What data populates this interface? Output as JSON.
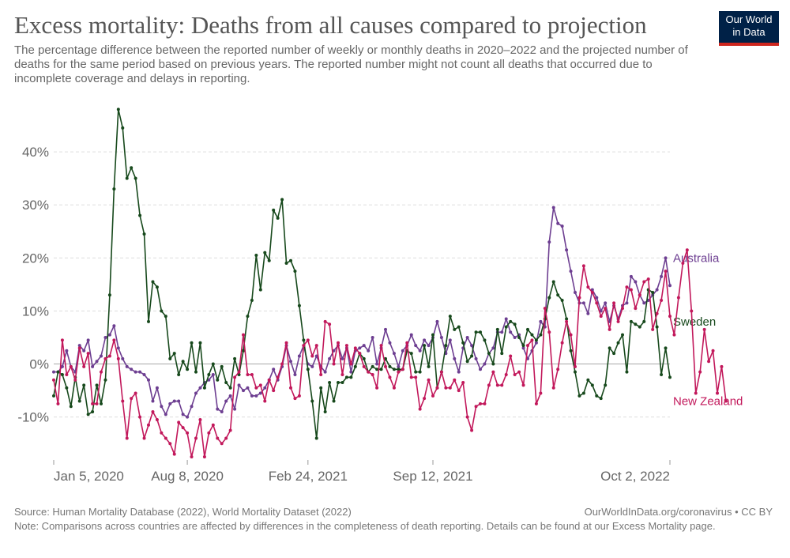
{
  "header": {
    "title": "Excess mortality: Deaths from all causes compared to projection",
    "subtitle": "The percentage difference between the reported number of weekly or monthly deaths in 2020–2022 and the projected number of deaths for the same period based on previous years. The reported number might not count all deaths that occurred due to incomplete coverage and delays in reporting.",
    "logo_line1": "Our World",
    "logo_line2": "in Data"
  },
  "footer": {
    "source": "Source: Human Mortality Database (2022), World Mortality Dataset (2022)",
    "license": "OurWorldInData.org/coronavirus • CC BY",
    "note": "Note: Comparisons across countries are affected by differences in the completeness of death reporting. Details can be found at our Excess Mortality page."
  },
  "chart_data": {
    "type": "line",
    "title": "Excess mortality: Deaths from all causes compared to projection",
    "ylabel": "",
    "ylim": [
      -17.5,
      50
    ],
    "yticks": [
      -10,
      0,
      10,
      20,
      30,
      40
    ],
    "ytick_labels": [
      "-10%",
      "0%",
      "10%",
      "20%",
      "30%",
      "40%"
    ],
    "x_range": [
      0,
      143
    ],
    "xticks": [
      0,
      31,
      59,
      88,
      143
    ],
    "xtick_labels": [
      "Jan 5, 2020",
      "Aug 8, 2020",
      "Feb 24, 2021",
      "Sep 12, 2021",
      "Oct 2, 2022"
    ],
    "grid": true,
    "series": [
      {
        "name": "Australia",
        "color": "#6d3e91",
        "values": [
          -1.5,
          -1.5,
          -0.5,
          2.5,
          -0.5,
          -1.5,
          3.5,
          2.5,
          4.5,
          -0.5,
          0.5,
          1.5,
          5.0,
          5.5,
          7.2,
          3.0,
          1.0,
          -0.5,
          -1.0,
          -1.5,
          -1.5,
          -2.0,
          -3.0,
          -7.0,
          -4.5,
          -8.0,
          -9.5,
          -7.5,
          -7.0,
          -7.0,
          -9.5,
          -10.0,
          -8.0,
          -5.5,
          -4.5,
          -3.5,
          -3.0,
          -2.0,
          -8.5,
          -9.0,
          -7.0,
          -6.0,
          -8.5,
          -4.0,
          -5.0,
          -4.5,
          -6.0,
          -6.0,
          -5.5,
          -4.5,
          -3.0,
          -1.0,
          -3.0,
          -0.5,
          3.5,
          0.5,
          -2.0,
          1.5,
          3.5,
          0.0,
          -0.5,
          1.5,
          -0.5,
          -1.5,
          1.0,
          2.5,
          3.5,
          1.0,
          3.0,
          -1.5,
          2.5,
          3.0,
          3.5,
          2.5,
          5.0,
          0.0,
          3.0,
          6.5,
          4.0,
          2.0,
          -0.5,
          2.5,
          3.5,
          5.5,
          3.5,
          2.5,
          4.5,
          3.5,
          5.0,
          8.0,
          5.0,
          2.0,
          4.5,
          1.0,
          -1.5,
          3.0,
          5.0,
          3.5,
          1.0,
          -1.0,
          0.0,
          2.0,
          3.0,
          6.0,
          6.0,
          8.5,
          6.0,
          5.0,
          5.5,
          3.0,
          1.0,
          2.5,
          4.0,
          8.0,
          7.0,
          23.0,
          29.5,
          26.5,
          26.0,
          21.5,
          17.5,
          13.5,
          11.5,
          11.5,
          9.5,
          14.0,
          12.5,
          10.0,
          11.5,
          8.0,
          11.0,
          8.5,
          11.0,
          11.5,
          16.5,
          15.5,
          13.0,
          11.5,
          12.0,
          13.0,
          14.0,
          16.5,
          20.0,
          14.8
        ]
      },
      {
        "name": "Sweden",
        "color": "#17491c",
        "values": [
          -6.0,
          -1.5,
          -2.0,
          -4.5,
          -8.0,
          -2.5,
          -7.0,
          -4.0,
          -9.5,
          -9.0,
          -4.0,
          -7.5,
          -3.0,
          13.0,
          33.0,
          48.0,
          44.5,
          35.0,
          37.0,
          35.0,
          28.0,
          24.5,
          8.0,
          15.5,
          14.5,
          10.0,
          9.0,
          1.0,
          2.0,
          -2.0,
          0.5,
          -1.0,
          4.0,
          -1.5,
          4.0,
          -4.5,
          -2.0,
          0.0,
          -3.0,
          -0.5,
          -3.5,
          -4.5,
          1.0,
          -2.0,
          2.5,
          9.0,
          12.0,
          20.5,
          14.0,
          21.0,
          19.5,
          29.0,
          27.5,
          31.0,
          19.0,
          19.5,
          17.5,
          11.0,
          4.5,
          -1.0,
          -7.0,
          -14.0,
          -4.5,
          -9.0,
          -3.5,
          -7.0,
          -3.5,
          -3.5,
          -2.5,
          -2.5,
          -0.5,
          2.0,
          1.0,
          -1.5,
          -0.5,
          -1.0,
          -1.0,
          1.0,
          -0.5,
          -1.0,
          -1.0,
          -1.0,
          2.5,
          2.0,
          -1.5,
          -1.5,
          3.5,
          -0.5,
          5.5,
          -4.5,
          -1.5,
          3.5,
          9.0,
          6.5,
          7.0,
          4.0,
          0.5,
          1.5,
          6.0,
          6.0,
          4.5,
          2.0,
          0.0,
          6.5,
          2.0,
          7.0,
          8.0,
          7.5,
          5.0,
          3.5,
          6.5,
          5.5,
          4.5,
          5.5,
          8.5,
          12.5,
          15.5,
          13.0,
          12.0,
          8.5,
          2.5,
          -1.5,
          -6.0,
          -5.5,
          -3.0,
          -4.0,
          -6.0,
          -6.5,
          -4.0,
          3.0,
          2.0,
          4.0,
          5.5,
          -1.5,
          8.0,
          7.5,
          7.0,
          8.0,
          14.0,
          13.5,
          7.0,
          -2.0,
          3.0
        ]
      },
      {
        "name": "New Zealand",
        "color": "#c2185b",
        "values": [
          -3.0,
          -7.5,
          4.5,
          -2.0,
          -0.5,
          -3.0,
          3.0,
          -0.5,
          2.0,
          -7.5,
          -7.5,
          -1.5,
          1.0,
          1.5,
          4.5,
          1.0,
          -7.0,
          -14.0,
          -6.5,
          -5.5,
          -10.0,
          -14.0,
          -11.5,
          -9.0,
          -10.5,
          -13.0,
          -14.0,
          -15.0,
          -17.0,
          -11.0,
          -12.0,
          -13.0,
          -17.5,
          -14.0,
          -10.5,
          -17.5,
          -13.0,
          -11.5,
          -14.0,
          -15.0,
          -14.0,
          -12.5,
          -2.5,
          -1.5,
          5.5,
          -2.0,
          -2.0,
          -4.5,
          -4.0,
          -7.0,
          -3.0,
          -5.0,
          -2.5,
          0.0,
          4.0,
          -4.5,
          -6.5,
          -6.0,
          3.5,
          4.5,
          1.5,
          3.5,
          -2.0,
          8.0,
          7.5,
          0.0,
          4.0,
          -2.0,
          3.5,
          0.0,
          3.0,
          2.0,
          -0.5,
          -1.5,
          -2.0,
          -4.5,
          3.5,
          -0.5,
          -2.5,
          -4.5,
          -1.5,
          -1.0,
          4.0,
          -2.5,
          -2.5,
          -8.5,
          -6.5,
          -3.0,
          -6.0,
          -4.5,
          -1.5,
          -4.5,
          -4.5,
          -3.0,
          -5.0,
          -3.5,
          -10.0,
          -12.5,
          -8.0,
          -7.5,
          -7.5,
          -4.0,
          -1.5,
          -4.0,
          -4.0,
          -2.0,
          1.5,
          -2.0,
          -1.5,
          -4.0,
          3.5,
          4.5,
          -7.5,
          -5.5,
          10.5,
          6.0,
          -4.5,
          -1.0,
          4.0,
          8.0,
          5.5,
          -0.5,
          12.5,
          18.5,
          14.5,
          13.5,
          11.5,
          9.0,
          10.5,
          6.5,
          11.5,
          8.0,
          10.5,
          14.5,
          14.0,
          10.5,
          13.0,
          15.5,
          16.0,
          6.5,
          9.5,
          12.0,
          17.5,
          9.0,
          5.5,
          12.5,
          19.0,
          21.5,
          10.0
        ]
      }
    ],
    "series_ext": [
      {
        "name": "Sweden",
        "extra": [
          -2.5
        ]
      },
      {
        "name": "New Zealand",
        "extra": [
          -5.5,
          -1.5,
          6.5,
          0.5,
          2.5,
          -5.5,
          -0.5,
          -7.0
        ]
      }
    ]
  }
}
